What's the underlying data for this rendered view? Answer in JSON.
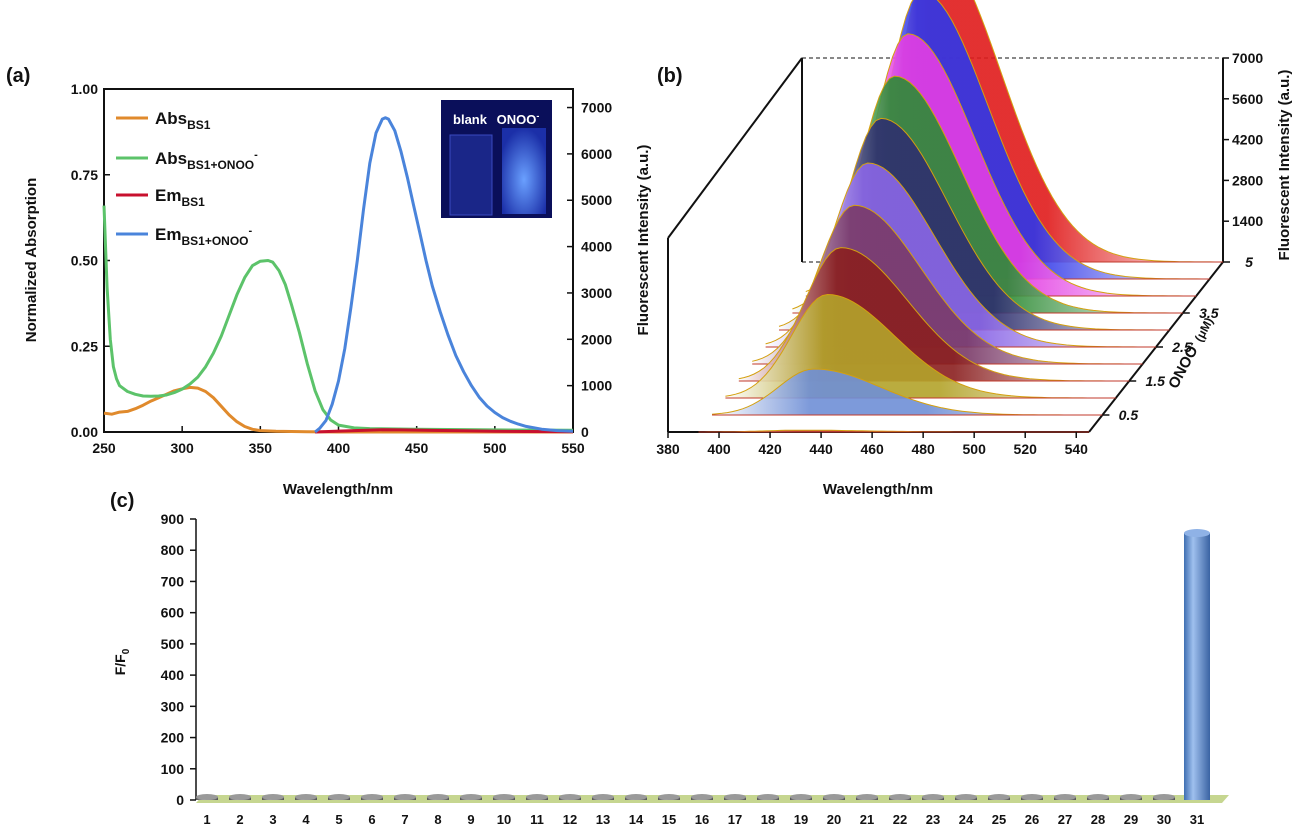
{
  "figure": {
    "panel_a_label": "(a)",
    "panel_b_label": "(b)",
    "panel_c_label": "(c)"
  },
  "chart_data": [
    {
      "panel": "(a)",
      "type": "line",
      "xlabel": "Wavelength/nm",
      "ylabel_left": "Normalized Absorption",
      "ylabel_right": "Fluorescent Intensity (a.u.)",
      "xlim": [
        250,
        550
      ],
      "ylim_left": [
        0,
        1.0
      ],
      "ylim_right": [
        0,
        7400
      ],
      "x_ticks": [
        "250",
        "300",
        "350",
        "400",
        "450",
        "500",
        "550"
      ],
      "y_ticks_left": [
        "0.00",
        "0.25",
        "0.50",
        "0.75",
        "1.00"
      ],
      "y_ticks_right": [
        "0",
        "1000",
        "2000",
        "3000",
        "4000",
        "5000",
        "6000",
        "7000"
      ],
      "legend_position": "top-left",
      "series": [
        {
          "name": "Abs",
          "name_sub": "BS1",
          "name_sup": "",
          "color": "#e08a2c",
          "axis": "left",
          "points": [
            [
              250,
              0.055
            ],
            [
              255,
              0.052
            ],
            [
              260,
              0.058
            ],
            [
              265,
              0.06
            ],
            [
              270,
              0.068
            ],
            [
              275,
              0.078
            ],
            [
              280,
              0.09
            ],
            [
              285,
              0.1
            ],
            [
              290,
              0.11
            ],
            [
              295,
              0.12
            ],
            [
              300,
              0.126
            ],
            [
              305,
              0.13
            ],
            [
              310,
              0.128
            ],
            [
              315,
              0.118
            ],
            [
              320,
              0.1
            ],
            [
              325,
              0.075
            ],
            [
              330,
              0.05
            ],
            [
              335,
              0.03
            ],
            [
              340,
              0.016
            ],
            [
              345,
              0.008
            ],
            [
              350,
              0.004
            ],
            [
              360,
              0.002
            ],
            [
              380,
              0.001
            ],
            [
              400,
              0.0
            ],
            [
              450,
              0.0
            ],
            [
              500,
              0.0
            ],
            [
              550,
              0.0
            ]
          ]
        },
        {
          "name": "Abs",
          "name_sub": "BS1+ONOO",
          "name_sup": "-",
          "color": "#5cc36a",
          "axis": "left",
          "points": [
            [
              250,
              0.66
            ],
            [
              252,
              0.42
            ],
            [
              254,
              0.27
            ],
            [
              256,
              0.19
            ],
            [
              258,
              0.155
            ],
            [
              260,
              0.135
            ],
            [
              265,
              0.118
            ],
            [
              270,
              0.11
            ],
            [
              275,
              0.105
            ],
            [
              280,
              0.104
            ],
            [
              285,
              0.105
            ],
            [
              290,
              0.108
            ],
            [
              295,
              0.115
            ],
            [
              300,
              0.125
            ],
            [
              305,
              0.14
            ],
            [
              310,
              0.16
            ],
            [
              315,
              0.19
            ],
            [
              320,
              0.23
            ],
            [
              325,
              0.28
            ],
            [
              330,
              0.34
            ],
            [
              335,
              0.4
            ],
            [
              340,
              0.45
            ],
            [
              345,
              0.485
            ],
            [
              350,
              0.498
            ],
            [
              355,
              0.5
            ],
            [
              358,
              0.495
            ],
            [
              362,
              0.47
            ],
            [
              366,
              0.43
            ],
            [
              370,
              0.37
            ],
            [
              375,
              0.29
            ],
            [
              380,
              0.2
            ],
            [
              385,
              0.12
            ],
            [
              390,
              0.065
            ],
            [
              395,
              0.035
            ],
            [
              400,
              0.02
            ],
            [
              410,
              0.012
            ],
            [
              420,
              0.01
            ],
            [
              450,
              0.008
            ],
            [
              500,
              0.006
            ],
            [
              550,
              0.005
            ]
          ]
        },
        {
          "name": "Em",
          "name_sub": "BS1",
          "name_sup": "",
          "color": "#c8102e",
          "axis": "right",
          "points": [
            [
              385,
              0
            ],
            [
              400,
              20
            ],
            [
              420,
              40
            ],
            [
              430,
              50
            ],
            [
              440,
              45
            ],
            [
              460,
              35
            ],
            [
              480,
              25
            ],
            [
              500,
              15
            ],
            [
              520,
              10
            ],
            [
              550,
              5
            ]
          ]
        },
        {
          "name": "Em",
          "name_sub": "BS1+ONOO",
          "name_sup": "-",
          "color": "#4a84db",
          "axis": "right",
          "points": [
            [
              385,
              0
            ],
            [
              388,
              80
            ],
            [
              392,
              250
            ],
            [
              396,
              600
            ],
            [
              400,
              1100
            ],
            [
              404,
              1800
            ],
            [
              408,
              2700
            ],
            [
              412,
              3700
            ],
            [
              416,
              4800
            ],
            [
              420,
              5800
            ],
            [
              424,
              6450
            ],
            [
              428,
              6750
            ],
            [
              430,
              6780
            ],
            [
              432,
              6750
            ],
            [
              436,
              6500
            ],
            [
              440,
              6050
            ],
            [
              444,
              5500
            ],
            [
              448,
              4900
            ],
            [
              452,
              4300
            ],
            [
              456,
              3700
            ],
            [
              460,
              3150
            ],
            [
              465,
              2600
            ],
            [
              470,
              2100
            ],
            [
              475,
              1650
            ],
            [
              480,
              1300
            ],
            [
              485,
              1000
            ],
            [
              490,
              750
            ],
            [
              495,
              560
            ],
            [
              500,
              420
            ],
            [
              505,
              310
            ],
            [
              510,
              230
            ],
            [
              515,
              170
            ],
            [
              520,
              120
            ],
            [
              530,
              60
            ],
            [
              540,
              30
            ],
            [
              550,
              15
            ]
          ]
        }
      ],
      "inset": {
        "label_left": "blank",
        "label_right": "ONOO",
        "label_right_sup": "-"
      }
    },
    {
      "panel": "(b)",
      "type": "line",
      "xlabel": "Wavelength/nm",
      "ylabel_left": "Fluorescent Intensity (a.u.)",
      "zlabel": "Fluorescent Intensity (a.u.)",
      "depth_label": "ONOO",
      "depth_label_sup": "-",
      "depth_label_unit": "(μM)",
      "x_ticks": [
        "380",
        "400",
        "420",
        "440",
        "460",
        "480",
        "500",
        "520",
        "540"
      ],
      "z_ticks": [
        "1400",
        "2800",
        "4200",
        "5600",
        "7000"
      ],
      "depth_ticks": [
        "0.5",
        "1.5",
        "2.5",
        "3.5",
        "5"
      ],
      "xlim": [
        380,
        545
      ],
      "zlim": [
        0,
        7000
      ],
      "series": [
        {
          "concentration": 0,
          "peak": 40,
          "color": "#c23b3b"
        },
        {
          "concentration": 0.5,
          "peak": 1000,
          "color": "#6f8fd6"
        },
        {
          "concentration": 1.0,
          "peak": 2250,
          "color": "#b3a32a"
        },
        {
          "concentration": 1.5,
          "peak": 2900,
          "color": "#8a1f1f"
        },
        {
          "concentration": 2.0,
          "peak": 3450,
          "color": "#7a3a68"
        },
        {
          "concentration": 2.5,
          "peak": 4000,
          "color": "#8a66e6"
        },
        {
          "concentration": 3.0,
          "peak": 4600,
          "color": "#2e2f6e"
        },
        {
          "concentration": 3.5,
          "peak": 5150,
          "color": "#2e8b35"
        },
        {
          "concentration": 4.0,
          "peak": 5700,
          "color": "#e33ee3"
        },
        {
          "concentration": 4.5,
          "peak": 6250,
          "color": "#2f36e8"
        },
        {
          "concentration": 5.0,
          "peak": 6800,
          "color": "#e01b1b"
        }
      ]
    },
    {
      "panel": "(c)",
      "type": "bar",
      "ylabel": "F/F",
      "ylabel_sub": "0",
      "ylim": [
        0,
        900
      ],
      "y_ticks": [
        "0",
        "100",
        "200",
        "300",
        "400",
        "500",
        "600",
        "700",
        "800",
        "900"
      ],
      "categories": [
        "1",
        "2",
        "3",
        "4",
        "5",
        "6",
        "7",
        "8",
        "9",
        "10",
        "11",
        "12",
        "13",
        "14",
        "15",
        "16",
        "17",
        "18",
        "19",
        "20",
        "21",
        "22",
        "23",
        "24",
        "25",
        "26",
        "27",
        "28",
        "29",
        "30",
        "31"
      ],
      "values": [
        2,
        2,
        2,
        2,
        2,
        2,
        2,
        2,
        2,
        2,
        2,
        6,
        2,
        2,
        2,
        8,
        2,
        2,
        2,
        2,
        2,
        2,
        2,
        4,
        2,
        2,
        2,
        2,
        2,
        2,
        855
      ],
      "bar_color": "#5b87c5",
      "small_bar_color": "#6b6b6b",
      "floor_color": "#c6d690"
    }
  ]
}
